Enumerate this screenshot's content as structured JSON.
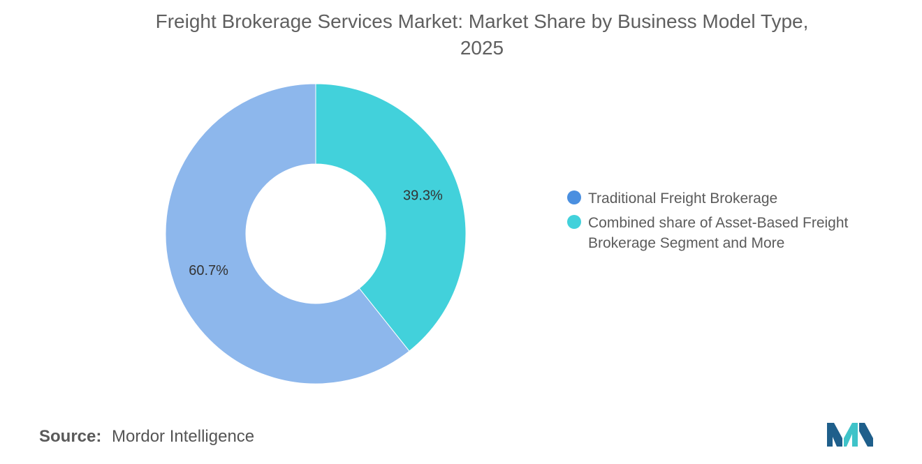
{
  "title_line1": "Freight Brokerage Services Market: Market Share by Business Model Type,",
  "title_line2": "2025",
  "source_key": "Source:",
  "source_value": "Mordor Intelligence",
  "colors": {
    "traditional": "#8db7ec",
    "combined": "#42d1db",
    "legend_traditional": "#4a8fe0",
    "logo_dark": "#1f5f8b",
    "logo_light": "#3fc3c9"
  },
  "chart_data": {
    "type": "pie",
    "donut": true,
    "title": "Freight Brokerage Services Market: Market Share by Business Model Type, 2025",
    "series": [
      {
        "name": "Traditional Freight Brokerage",
        "value": 60.7,
        "label": "60.7%"
      },
      {
        "name": "Combined share of Asset-Based Freight Brokerage Segment and More",
        "value": 39.3,
        "label": "39.3%"
      }
    ],
    "legend_position": "right"
  },
  "legend": [
    {
      "label": "Traditional Freight Brokerage"
    },
    {
      "label": "Combined share of Asset-Based Freight Brokerage Segment and More"
    }
  ]
}
